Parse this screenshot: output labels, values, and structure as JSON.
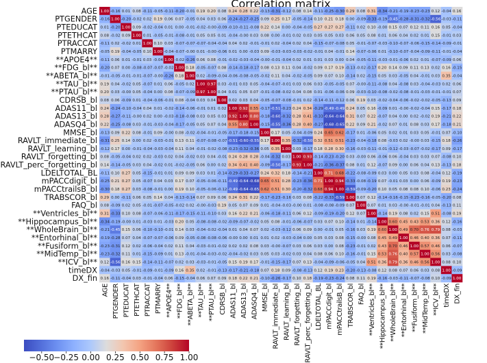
{
  "chart_data": {
    "type": "heatmap",
    "title": "Correlation matrix",
    "colormap": "coolwarm",
    "color_range": [
      -0.68,
      1.0
    ],
    "colorbar": {
      "placement": "bottom-left",
      "ticks": [
        "−0.50",
        "−0.25",
        "0.00",
        "0.25",
        "0.50",
        "0.75",
        "1.00"
      ],
      "tick_values": [
        -0.5,
        -0.25,
        0,
        0.25,
        0.5,
        0.75,
        1.0
      ]
    },
    "labels": [
      "AGE",
      "PTGENDER",
      "PTEDUCAT",
      "PTETHCAT",
      "PTRACCAT",
      "PTMARRY",
      "**APOE4**",
      "**FDG_bl**",
      "**ABETA_bl**",
      "**TAU_bl**",
      "**PTAU_bl**",
      "CDRSB_bl",
      "ADAS11_bl",
      "ADAS13_bl",
      "ADASQ4_bl",
      "MMSE_bl",
      "RAVLT_immediate_bl",
      "RAVLT_learning_bl",
      "RAVLT_forgetting_bl",
      "RAVLT_perc_forgetting_bl",
      "LDELTOTAL_BL",
      "mPACCdigit_bl",
      "mPACCtrailsB_bl",
      "TRABSCOR_bl",
      "FAQ_bl",
      "**Ventricles_bl**",
      "**Hippocampus_bl**",
      "**WholeBrain_bl**",
      "**Entorhinal_bl**",
      "**Fusiform_bl**",
      "**MidTemp_bl**",
      "**ICV_bl**",
      "timeDX",
      "DX_fin"
    ],
    "values": [
      [
        1.0,
        -0.16,
        0.01,
        0.08,
        -0.11,
        -0.05,
        -0.11,
        -0.2,
        -0.01,
        0.19,
        0.2,
        0.08,
        0.24,
        0.28,
        0.22,
        -0.13,
        -0.31,
        -0.12,
        0.08,
        0.14,
        -0.11,
        -0.25,
        -0.3,
        0.29,
        0.08,
        0.31,
        -0.34,
        -0.21,
        -0.19,
        -0.23,
        -0.23,
        0.12,
        -0.04,
        0.16
      ],
      [
        -0.16,
        1.0,
        -0.2,
        -0.02,
        0.02,
        0.19,
        0.06,
        0.07,
        -0.05,
        0.04,
        0.03,
        0.06,
        -0.24,
        -0.27,
        -0.25,
        0.09,
        0.25,
        0.17,
        -0.05,
        -0.14,
        0.1,
        0.21,
        0.18,
        0.0,
        -0.09,
        -0.33,
        -0.19,
        -0.45,
        -0.28,
        -0.31,
        -0.32,
        -0.56,
        -0.03,
        -0.11
      ],
      [
        0.01,
        -0.2,
        1.0,
        0.09,
        -0.02,
        -0.04,
        0.01,
        0.0,
        -0.01,
        -0.02,
        -0.0,
        -0.09,
        -0.1,
        -0.11,
        -0.08,
        0.22,
        0.14,
        0.0,
        -0.04,
        -0.05,
        0.27,
        0.27,
        0.27,
        -0.11,
        0.02,
        0.1,
        -0.0,
        0.15,
        0.07,
        0.12,
        0.11,
        0.16,
        0.05,
        -0.04
      ],
      [
        0.08,
        -0.02,
        0.09,
        1.0,
        0.01,
        -0.05,
        -0.01,
        -0.08,
        -0.01,
        0.05,
        0.05,
        0.01,
        -0.04,
        -0.0,
        0.03,
        0.08,
        0.0,
        -0.01,
        0.02,
        0.03,
        0.05,
        0.05,
        0.03,
        0.06,
        0.05,
        0.08,
        0.01,
        0.06,
        0.04,
        0.02,
        0.01,
        0.15,
        -0.01,
        0.03
      ],
      [
        -0.11,
        0.02,
        -0.02,
        0.01,
        1.0,
        0.1,
        0.03,
        -0.07,
        -0.07,
        -0.07,
        -0.04,
        -0.04,
        0.04,
        0.02,
        -0.01,
        -0.01,
        0.02,
        -0.04,
        0.02,
        0.04,
        -0.15,
        -0.07,
        -0.08,
        0.05,
        -0.01,
        -0.07,
        -0.03,
        -0.1,
        -0.07,
        -0.06,
        -0.15,
        -0.14,
        -0.09,
        -0.01
      ],
      [
        -0.05,
        0.19,
        -0.04,
        -0.05,
        0.1,
        1.0,
        -0.04,
        -0.07,
        -0.0,
        0.01,
        -0.0,
        -0.06,
        0.01,
        0.0,
        -0.03,
        0.09,
        -0.03,
        -0.03,
        -0.03,
        -0.02,
        -0.01,
        0.04,
        -0.01,
        0.14,
        -0.07,
        -0.06,
        0.01,
        -0.1,
        -0.07,
        -0.04,
        -0.09,
        -0.11,
        -0.01,
        -0.04
      ],
      [
        -0.11,
        0.06,
        0.01,
        -0.01,
        0.03,
        -0.04,
        1.0,
        -0.02,
        -0.26,
        0.06,
        0.08,
        -0.01,
        -0.02,
        -0.03,
        -0.04,
        -0.0,
        -0.01,
        -0.04,
        0.02,
        0.01,
        0.01,
        0.03,
        0.0,
        0.04,
        -0.05,
        -0.11,
        -0.03,
        -0.01,
        -0.06,
        0.02,
        0.01,
        -0.07,
        -0.09,
        0.06
      ],
      [
        -0.2,
        0.07,
        0.0,
        -0.08,
        -0.07,
        -0.07,
        -0.02,
        1.0,
        0.18,
        -0.05,
        -0.07,
        0.08,
        -0.14,
        -0.18,
        -0.17,
        0.08,
        0.13,
        0.11,
        0.04,
        -0.02,
        0.09,
        0.17,
        0.19,
        -0.13,
        -0.02,
        -0.17,
        0.2,
        0.14,
        0.09,
        0.11,
        0.13,
        0.02,
        0.16,
        -0.15
      ],
      [
        -0.01,
        -0.05,
        -0.01,
        -0.01,
        -0.07,
        -0.0,
        -0.26,
        0.18,
        1.0,
        0.02,
        -0.09,
        -0.04,
        -0.06,
        -0.08,
        -0.05,
        -0.02,
        0.11,
        0.04,
        -0.02,
        -0.05,
        0.09,
        0.07,
        0.1,
        -0.14,
        0.02,
        -0.15,
        0.05,
        0.03,
        -0.05,
        0.04,
        -0.01,
        0.03,
        0.35,
        -0.04
      ],
      [
        0.19,
        0.04,
        -0.02,
        0.05,
        -0.07,
        0.01,
        0.06,
        -0.05,
        0.02,
        1.0,
        0.97,
        0.03,
        -0.01,
        0.03,
        0.05,
        -0.04,
        -0.07,
        -0.01,
        0.03,
        0.06,
        0.03,
        -0.05,
        -0.05,
        0.07,
        -0.0,
        -0.11,
        -0.08,
        0.04,
        -0.08,
        0.03,
        -0.04,
        -0.03,
        0.02,
        0.06
      ],
      [
        0.2,
        0.03,
        -0.0,
        0.05,
        -0.04,
        0.0,
        0.08,
        -0.07,
        -0.09,
        0.97,
        1.0,
        0.04,
        0.01,
        0.05,
        0.07,
        -0.01,
        -0.08,
        -0.02,
        0.04,
        0.08,
        0.01,
        -0.06,
        -0.06,
        0.09,
        -0.03,
        -0.1,
        -0.08,
        -0.02,
        -0.08,
        -0.01,
        -0.03,
        -0.01,
        -0.01,
        0.07
      ],
      [
        0.08,
        0.06,
        -0.09,
        0.01,
        -0.04,
        -0.06,
        -0.01,
        0.08,
        -0.04,
        0.03,
        0.04,
        1.0,
        0.02,
        0.03,
        0.04,
        -0.05,
        -0.07,
        -0.08,
        -0.01,
        0.02,
        -0.14,
        -0.11,
        -0.12,
        0.06,
        0.19,
        0.03,
        -0.02,
        -0.04,
        -0.06,
        -0.02,
        -0.02,
        -0.05,
        -0.13,
        0.09
      ],
      [
        0.24,
        -0.24,
        -0.1,
        -0.04,
        0.04,
        0.01,
        -0.02,
        -0.14,
        -0.06,
        -0.01,
        0.01,
        0.02,
        1.0,
        0.92,
        0.55,
        -0.17,
        -0.51,
        -0.23,
        0.24,
        0.34,
        -0.29,
        -0.49,
        -0.49,
        0.24,
        0.05,
        0.16,
        -0.09,
        0.01,
        -0.0,
        -0.02,
        -0.04,
        0.15,
        -0.17,
        0.18
      ],
      [
        0.28,
        -0.27,
        -0.11,
        -0.0,
        0.02,
        0.0,
        -0.03,
        -0.18,
        -0.08,
        0.03,
        0.05,
        0.03,
        0.92,
        1.0,
        0.8,
        -0.18,
        -0.6,
        -0.32,
        0.28,
        0.41,
        -0.33,
        -0.64,
        -0.64,
        0.31,
        0.07,
        0.22,
        -0.07,
        0.04,
        0.0,
        0.02,
        -0.02,
        0.19,
        -0.21,
        0.22
      ],
      [
        0.22,
        -0.25,
        -0.08,
        0.03,
        -0.01,
        -0.03,
        -0.04,
        -0.17,
        -0.05,
        0.05,
        0.07,
        0.04,
        0.55,
        0.8,
        1.0,
        -0.15,
        -0.55,
        -0.36,
        0.28,
        0.4,
        -0.27,
        -0.68,
        -0.65,
        0.22,
        0.09,
        0.21,
        -0.02,
        0.07,
        0.01,
        0.08,
        0.03,
        0.17,
        -0.18,
        0.21
      ],
      [
        -0.13,
        0.09,
        0.22,
        0.08,
        -0.01,
        0.09,
        -0.0,
        0.08,
        -0.02,
        -0.04,
        -0.01,
        -0.05,
        -0.17,
        -0.18,
        -0.15,
        1.0,
        0.17,
        0.05,
        -0.04,
        -0.09,
        0.24,
        0.65,
        0.62,
        -0.17,
        0.01,
        -0.06,
        0.05,
        0.02,
        0.01,
        0.03,
        0.05,
        -0.01,
        0.07,
        -0.1
      ],
      [
        -0.31,
        0.25,
        0.14,
        0.0,
        0.02,
        -0.03,
        -0.01,
        0.13,
        0.11,
        -0.07,
        -0.08,
        -0.07,
        -0.51,
        -0.6,
        -0.55,
        0.17,
        1.0,
        0.35,
        -0.32,
        -0.5,
        0.32,
        0.51,
        0.51,
        -0.23,
        -0.04,
        -0.18,
        0.08,
        -0.03,
        0.02,
        -0.0,
        0.03,
        -0.15,
        0.18,
        -0.26
      ],
      [
        -0.12,
        0.17,
        0.0,
        -0.01,
        -0.04,
        -0.03,
        -0.04,
        0.11,
        0.04,
        -0.01,
        -0.02,
        -0.08,
        -0.23,
        -0.32,
        -0.36,
        0.05,
        0.35,
        1.0,
        0.03,
        -0.17,
        0.18,
        0.28,
        0.3,
        -0.16,
        -0.03,
        -0.11,
        -0.01,
        -0.12,
        -0.03,
        -0.07,
        -0.02,
        -0.17,
        0.09,
        -0.17
      ],
      [
        0.08,
        -0.05,
        -0.04,
        0.02,
        0.02,
        -0.03,
        0.02,
        0.04,
        -0.02,
        0.03,
        0.04,
        -0.01,
        0.24,
        0.28,
        0.28,
        -0.04,
        -0.32,
        0.03,
        1.0,
        0.93,
        -0.14,
        -0.23,
        -0.2,
        0.03,
        -0.0,
        0.06,
        -0.06,
        0.06,
        -0.04,
        0.03,
        0.03,
        0.07,
        -0.08,
        0.1
      ],
      [
        0.14,
        -0.14,
        -0.05,
        0.03,
        0.04,
        -0.02,
        0.01,
        -0.02,
        -0.05,
        0.06,
        0.0,
        0.02,
        0.34,
        0.41,
        0.4,
        -0.09,
        -0.5,
        -0.17,
        0.93,
        1.0,
        -0.21,
        -0.36,
        -0.37,
        0.08,
        0.01,
        0.12,
        -0.07,
        0.09,
        0.0,
        0.06,
        0.04,
        0.13,
        -0.13,
        0.18
      ],
      [
        -0.11,
        0.1,
        0.27,
        0.05,
        -0.15,
        -0.01,
        0.01,
        0.09,
        0.09,
        0.03,
        0.01,
        -0.14,
        -0.29,
        -0.33,
        -0.27,
        0.24,
        0.32,
        0.18,
        -0.14,
        -0.21,
        1.0,
        0.71,
        0.68,
        -0.22,
        -0.08,
        -0.09,
        0.03,
        0.0,
        0.05,
        0.03,
        0.08,
        -0.04,
        0.12,
        -0.19
      ],
      [
        -0.25,
        0.21,
        0.27,
        0.05,
        -0.07,
        0.04,
        0.03,
        0.17,
        0.07,
        -0.05,
        -0.06,
        -0.11,
        -0.49,
        -0.64,
        -0.68,
        0.65,
        0.51,
        0.28,
        -0.23,
        -0.36,
        0.71,
        1.0,
        0.94,
        -0.33,
        -0.08,
        -0.19,
        0.07,
        -0.01,
        0.03,
        0.0,
        0.06,
        -0.09,
        0.19,
        -0.23
      ],
      [
        -0.3,
        0.18,
        0.27,
        0.03,
        -0.08,
        -0.01,
        0.0,
        0.19,
        0.1,
        -0.05,
        -0.06,
        -0.12,
        -0.49,
        -0.64,
        -0.65,
        0.62,
        0.51,
        0.3,
        -0.2,
        -0.32,
        0.68,
        0.94,
        1.0,
        -0.59,
        -0.09,
        -0.2,
        0.1,
        0.05,
        0.08,
        0.08,
        0.1,
        -0.06,
        0.23,
        -0.24
      ],
      [
        0.29,
        0.0,
        -0.11,
        0.06,
        0.05,
        0.14,
        0.04,
        -0.13,
        -0.14,
        0.07,
        0.09,
        0.06,
        0.24,
        0.31,
        0.22,
        -0.17,
        -0.23,
        -0.16,
        0.03,
        0.08,
        -0.22,
        -0.33,
        -0.59,
        1.0,
        0.07,
        0.12,
        -0.14,
        -0.16,
        -0.15,
        -0.23,
        -0.16,
        -0.05,
        -0.2,
        0.08
      ],
      [
        0.08,
        -0.09,
        0.02,
        0.05,
        -0.01,
        -0.07,
        -0.05,
        -0.02,
        0.02,
        -0.0,
        -0.03,
        0.19,
        0.05,
        0.07,
        0.09,
        0.01,
        -0.04,
        -0.03,
        -0.0,
        0.01,
        -0.08,
        -0.08,
        -0.09,
        0.07,
        1.0,
        0.07,
        0.01,
        0.03,
        -0.0,
        -0.01,
        -0.01,
        0.04,
        -0.13,
        0.11
      ],
      [
        0.31,
        -0.33,
        0.1,
        0.08,
        -0.07,
        -0.06,
        -0.11,
        -0.17,
        -0.15,
        -0.11,
        -0.1,
        0.03,
        0.16,
        0.22,
        0.21,
        -0.06,
        -0.18,
        -0.11,
        0.06,
        0.12,
        -0.09,
        -0.19,
        -0.2,
        0.12,
        0.07,
        1.0,
        -0.14,
        0.19,
        0.08,
        0.02,
        0.15,
        0.51,
        -0.08,
        0.19
      ],
      [
        -0.34,
        -0.19,
        -0.0,
        0.01,
        -0.03,
        0.01,
        -0.03,
        0.2,
        0.05,
        -0.08,
        -0.08,
        -0.02,
        -0.09,
        -0.07,
        -0.02,
        0.05,
        0.08,
        -0.01,
        -0.06,
        -0.07,
        0.03,
        0.07,
        0.1,
        -0.14,
        0.01,
        -0.14,
        1.0,
        0.6,
        0.45,
        0.43,
        0.53,
        0.36,
        0.12,
        -0.16
      ],
      [
        -0.21,
        -0.45,
        0.15,
        0.06,
        -0.1,
        -0.1,
        -0.01,
        0.14,
        0.03,
        -0.04,
        -0.02,
        -0.04,
        0.01,
        0.04,
        0.07,
        0.02,
        -0.03,
        -0.12,
        0.06,
        0.09,
        0.0,
        -0.01,
        0.05,
        -0.16,
        0.03,
        0.19,
        0.6,
        1.0,
        0.49,
        0.7,
        0.76,
        0.79,
        0.08,
        -0.03
      ],
      [
        -0.19,
        -0.28,
        0.07,
        0.04,
        -0.07,
        -0.07,
        -0.06,
        0.09,
        -0.05,
        -0.08,
        -0.08,
        -0.06,
        -0.0,
        0.0,
        0.01,
        0.01,
        0.02,
        -0.03,
        -0.04,
        0.0,
        0.05,
        0.03,
        0.08,
        -0.15,
        -0.0,
        0.08,
        0.45,
        0.49,
        1.0,
        0.46,
        0.4,
        0.36,
        0.07,
        -0.11
      ],
      [
        -0.23,
        -0.31,
        0.12,
        0.02,
        -0.06,
        -0.04,
        0.02,
        0.11,
        0.04,
        -0.03,
        -0.01,
        -0.02,
        0.02,
        0.02,
        0.08,
        0.03,
        -0.0,
        -0.07,
        0.03,
        0.06,
        0.03,
        0.0,
        0.08,
        -0.23,
        -0.01,
        0.02,
        0.43,
        0.7,
        0.46,
        1.0,
        0.57,
        0.46,
        0.06,
        -0.07
      ],
      [
        -0.23,
        -0.32,
        0.11,
        0.01,
        -0.15,
        -0.09,
        0.01,
        0.13,
        -0.01,
        -0.04,
        -0.03,
        -0.02,
        -0.04,
        -0.02,
        0.03,
        0.05,
        0.03,
        -0.02,
        0.03,
        0.04,
        0.08,
        0.06,
        0.1,
        -0.16,
        -0.01,
        0.15,
        0.53,
        0.76,
        0.4,
        0.57,
        1.0,
        0.56,
        0.03,
        -0.08
      ],
      [
        0.12,
        -0.56,
        0.16,
        0.15,
        -0.14,
        -0.11,
        -0.07,
        0.02,
        0.03,
        -0.03,
        -0.01,
        -0.05,
        0.15,
        0.19,
        0.17,
        -0.01,
        -0.15,
        -0.17,
        0.07,
        0.13,
        -0.04,
        -0.09,
        -0.06,
        -0.05,
        0.04,
        0.51,
        0.36,
        0.79,
        0.36,
        0.46,
        0.56,
        1.0,
        0.08,
        0.1
      ],
      [
        -0.04,
        -0.03,
        0.05,
        -0.01,
        -0.09,
        -0.01,
        -0.09,
        0.16,
        0.35,
        0.02,
        -0.01,
        -0.13,
        -0.17,
        -0.21,
        -0.18,
        0.07,
        0.18,
        0.09,
        -0.08,
        -0.13,
        0.12,
        0.19,
        0.23,
        -0.2,
        -0.13,
        -0.08,
        0.12,
        0.08,
        0.07,
        0.06,
        0.03,
        0.08,
        1.0,
        -0.09
      ],
      [
        0.16,
        -0.11,
        -0.04,
        0.03,
        -0.01,
        -0.04,
        0.06,
        -0.15,
        -0.04,
        0.06,
        0.07,
        0.09,
        0.18,
        0.22,
        0.21,
        -0.1,
        -0.26,
        -0.17,
        0.1,
        0.18,
        -0.19,
        -0.23,
        -0.24,
        0.08,
        0.11,
        0.19,
        -0.16,
        -0.03,
        -0.11,
        -0.07,
        -0.08,
        0.1,
        -0.09,
        1.0
      ]
    ]
  }
}
